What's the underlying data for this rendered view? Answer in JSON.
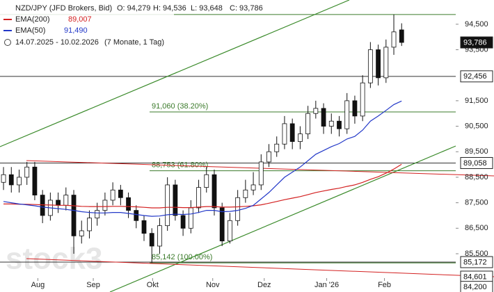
{
  "chart_data": {
    "type": "candlestick",
    "title": "NZD/JPY (JFD Brokers, Bid)",
    "ohlc_labels": [
      "O: 94,279",
      "H: 94,536",
      "L: 93,648",
      "C: 93,786"
    ],
    "period": "14.07.2025 - 10.02.2026",
    "period_note": "(7 Monate, 1 Tag)",
    "watermark": "stock3",
    "open": [
      88.3,
      88.6,
      88.2,
      88.5,
      88.9,
      87.8,
      87.0,
      87.6,
      87.4,
      87.8,
      86.2,
      86.4,
      86.9,
      87.2,
      87.6,
      88.0,
      87.7,
      87.2,
      86.8,
      86.3,
      85.8,
      86.6,
      88.2,
      87.0,
      86.5,
      87.3,
      88.1,
      88.6,
      87.3,
      86.0,
      86.8,
      87.7,
      88.0,
      88.2,
      89.1,
      89.5,
      89.8,
      90.6,
      89.9,
      90.2,
      91.0,
      91.2,
      90.5,
      90.7,
      90.4,
      91.5,
      90.9,
      92.2,
      93.5,
      92.4,
      93.6,
      94.279
    ],
    "high": [
      88.9,
      88.9,
      88.8,
      89.1,
      89.1,
      88.0,
      87.9,
      87.9,
      88.1,
      88.0,
      86.8,
      87.2,
      87.5,
      87.9,
      88.3,
      88.2,
      87.9,
      87.4,
      87.0,
      86.5,
      86.9,
      88.5,
      88.4,
      87.2,
      87.6,
      88.4,
      88.9,
      88.8,
      87.5,
      87.1,
      88.0,
      88.4,
      88.7,
      89.4,
      89.8,
      90.1,
      90.9,
      90.8,
      90.5,
      91.3,
      91.5,
      91.4,
      91.0,
      90.9,
      91.8,
      91.7,
      92.5,
      93.8,
      93.7,
      93.9,
      94.88,
      94.536
    ],
    "low": [
      88.0,
      87.9,
      87.9,
      88.2,
      87.6,
      86.7,
      86.8,
      87.1,
      87.2,
      85.5,
      85.9,
      86.1,
      86.6,
      87.0,
      87.4,
      87.4,
      86.9,
      86.5,
      86.0,
      85.14,
      85.5,
      86.4,
      86.8,
      86.2,
      86.3,
      87.1,
      87.9,
      87.0,
      85.8,
      85.9,
      86.6,
      87.5,
      87.8,
      88.0,
      88.9,
      89.3,
      89.6,
      89.6,
      89.6,
      90.0,
      90.8,
      90.2,
      90.2,
      90.1,
      90.2,
      90.6,
      90.7,
      92.0,
      92.1,
      92.2,
      93.3,
      93.648
    ],
    "close": [
      88.6,
      88.2,
      88.5,
      88.9,
      87.8,
      87.0,
      87.6,
      87.4,
      87.8,
      86.2,
      86.4,
      86.9,
      87.2,
      87.6,
      88.0,
      87.7,
      87.2,
      86.8,
      86.3,
      85.8,
      86.6,
      88.2,
      87.0,
      86.5,
      87.3,
      88.1,
      88.6,
      87.3,
      86.0,
      86.8,
      87.7,
      88.0,
      88.2,
      89.1,
      89.5,
      89.8,
      90.6,
      89.9,
      90.2,
      91.0,
      91.2,
      90.5,
      90.7,
      90.4,
      91.5,
      90.9,
      92.2,
      93.5,
      92.4,
      93.6,
      94.2,
      93.786
    ],
    "series": [
      {
        "name": "EMA(200)",
        "value_label": "89,007",
        "color": "#d32020",
        "values": [
          87.45,
          87.45,
          87.44,
          87.44,
          87.43,
          87.42,
          87.41,
          87.4,
          87.4,
          87.38,
          87.36,
          87.35,
          87.35,
          87.35,
          87.36,
          87.36,
          87.35,
          87.34,
          87.32,
          87.3,
          87.3,
          87.32,
          87.32,
          87.31,
          87.31,
          87.33,
          87.35,
          87.35,
          87.33,
          87.33,
          87.34,
          87.36,
          87.38,
          87.42,
          87.48,
          87.55,
          87.62,
          87.68,
          87.74,
          87.82,
          87.9,
          87.96,
          88.02,
          88.07,
          88.14,
          88.2,
          88.3,
          88.42,
          88.52,
          88.66,
          88.82,
          89.007
        ]
      },
      {
        "name": "EMA(50)",
        "value_label": "91,490",
        "color": "#2238c8",
        "values": [
          87.55,
          87.5,
          87.45,
          87.42,
          87.38,
          87.33,
          87.3,
          87.27,
          87.24,
          87.2,
          87.15,
          87.12,
          87.1,
          87.1,
          87.12,
          87.12,
          87.08,
          87.04,
          87.0,
          86.97,
          86.98,
          87.03,
          87.05,
          87.04,
          87.06,
          87.12,
          87.2,
          87.2,
          87.15,
          87.16,
          87.2,
          87.28,
          87.4,
          87.65,
          87.9,
          88.2,
          88.5,
          88.7,
          88.9,
          89.15,
          89.4,
          89.55,
          89.7,
          89.82,
          90.0,
          90.1,
          90.35,
          90.7,
          90.9,
          91.12,
          91.35,
          91.49
        ]
      }
    ],
    "xlim": [
      -0.45,
      57.93
    ],
    "xticks": [
      {
        "value": 4.4,
        "label": "Aug"
      },
      {
        "value": 11.5,
        "label": "Sep"
      },
      {
        "value": 19.1,
        "label": "Okt"
      },
      {
        "value": 26.8,
        "label": "Nov"
      },
      {
        "value": 33.4,
        "label": "Dez"
      },
      {
        "value": 41.4,
        "label": "Jan '26"
      },
      {
        "value": 48.8,
        "label": "Feb"
      }
    ],
    "ylim": [
      84.0,
      95.45
    ],
    "yticks": [
      {
        "value": 94.5,
        "label": "94,500"
      },
      {
        "value": 93.5,
        "label": "93,500"
      },
      {
        "value": 91.5,
        "label": "91,500"
      },
      {
        "value": 90.5,
        "label": "90,500"
      },
      {
        "value": 89.5,
        "label": "89,500"
      },
      {
        "value": 88.5,
        "label": "88,500"
      },
      {
        "value": 87.5,
        "label": "87,500"
      },
      {
        "value": 86.5,
        "label": "86,500"
      },
      {
        "value": 85.5,
        "label": "85,500"
      }
    ],
    "levels": [
      {
        "value": 94.88,
        "color": "#3a7a2a"
      },
      {
        "value": 92.456,
        "color": "#333333"
      },
      {
        "value": 91.06,
        "label": "91,060 (38.20%)",
        "color": "#3a7a2a"
      },
      {
        "value": 89.058,
        "color": "#333333"
      },
      {
        "value": 88.753,
        "label": "88,753 (61.80%)",
        "color": "#3a7a2a"
      },
      {
        "value": 85.142,
        "label": "85,142 (100.00%)",
        "color": "#3a7a2a"
      },
      {
        "value": 85.172,
        "color": "#333333"
      }
    ],
    "price_tags": [
      {
        "value": 93.786,
        "label": "93,786",
        "style": "dark"
      },
      {
        "value": 92.456,
        "label": "92,456",
        "style": "light"
      },
      {
        "value": 89.058,
        "label": "89,058",
        "style": "light"
      },
      {
        "value": 85.172,
        "label": "85,172",
        "style": "light"
      },
      {
        "value": 84.601,
        "label": "84,601",
        "style": "light"
      },
      {
        "value": 84.2,
        "label": "84,200",
        "style": "light"
      }
    ]
  }
}
